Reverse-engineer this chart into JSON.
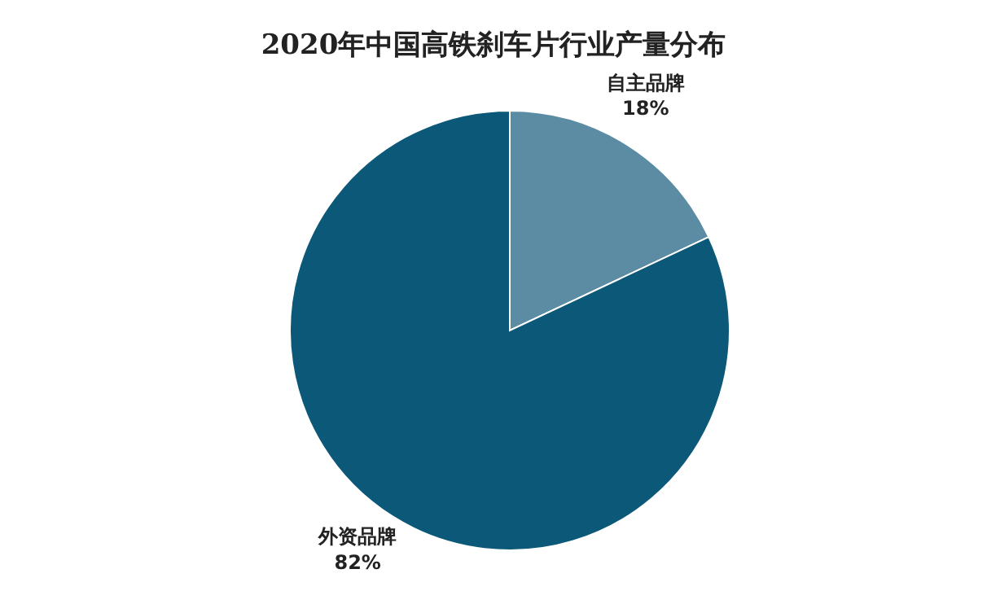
{
  "chart_data": {
    "type": "pie",
    "title": "2020年中国高铁刹车片行业产量分布",
    "categories": [
      "自主品牌",
      "外资品牌"
    ],
    "values": [
      18,
      82
    ],
    "colors": [
      "#5b8ca3",
      "#0b5878"
    ],
    "value_labels": [
      "18%",
      "82%"
    ],
    "legend": false
  }
}
